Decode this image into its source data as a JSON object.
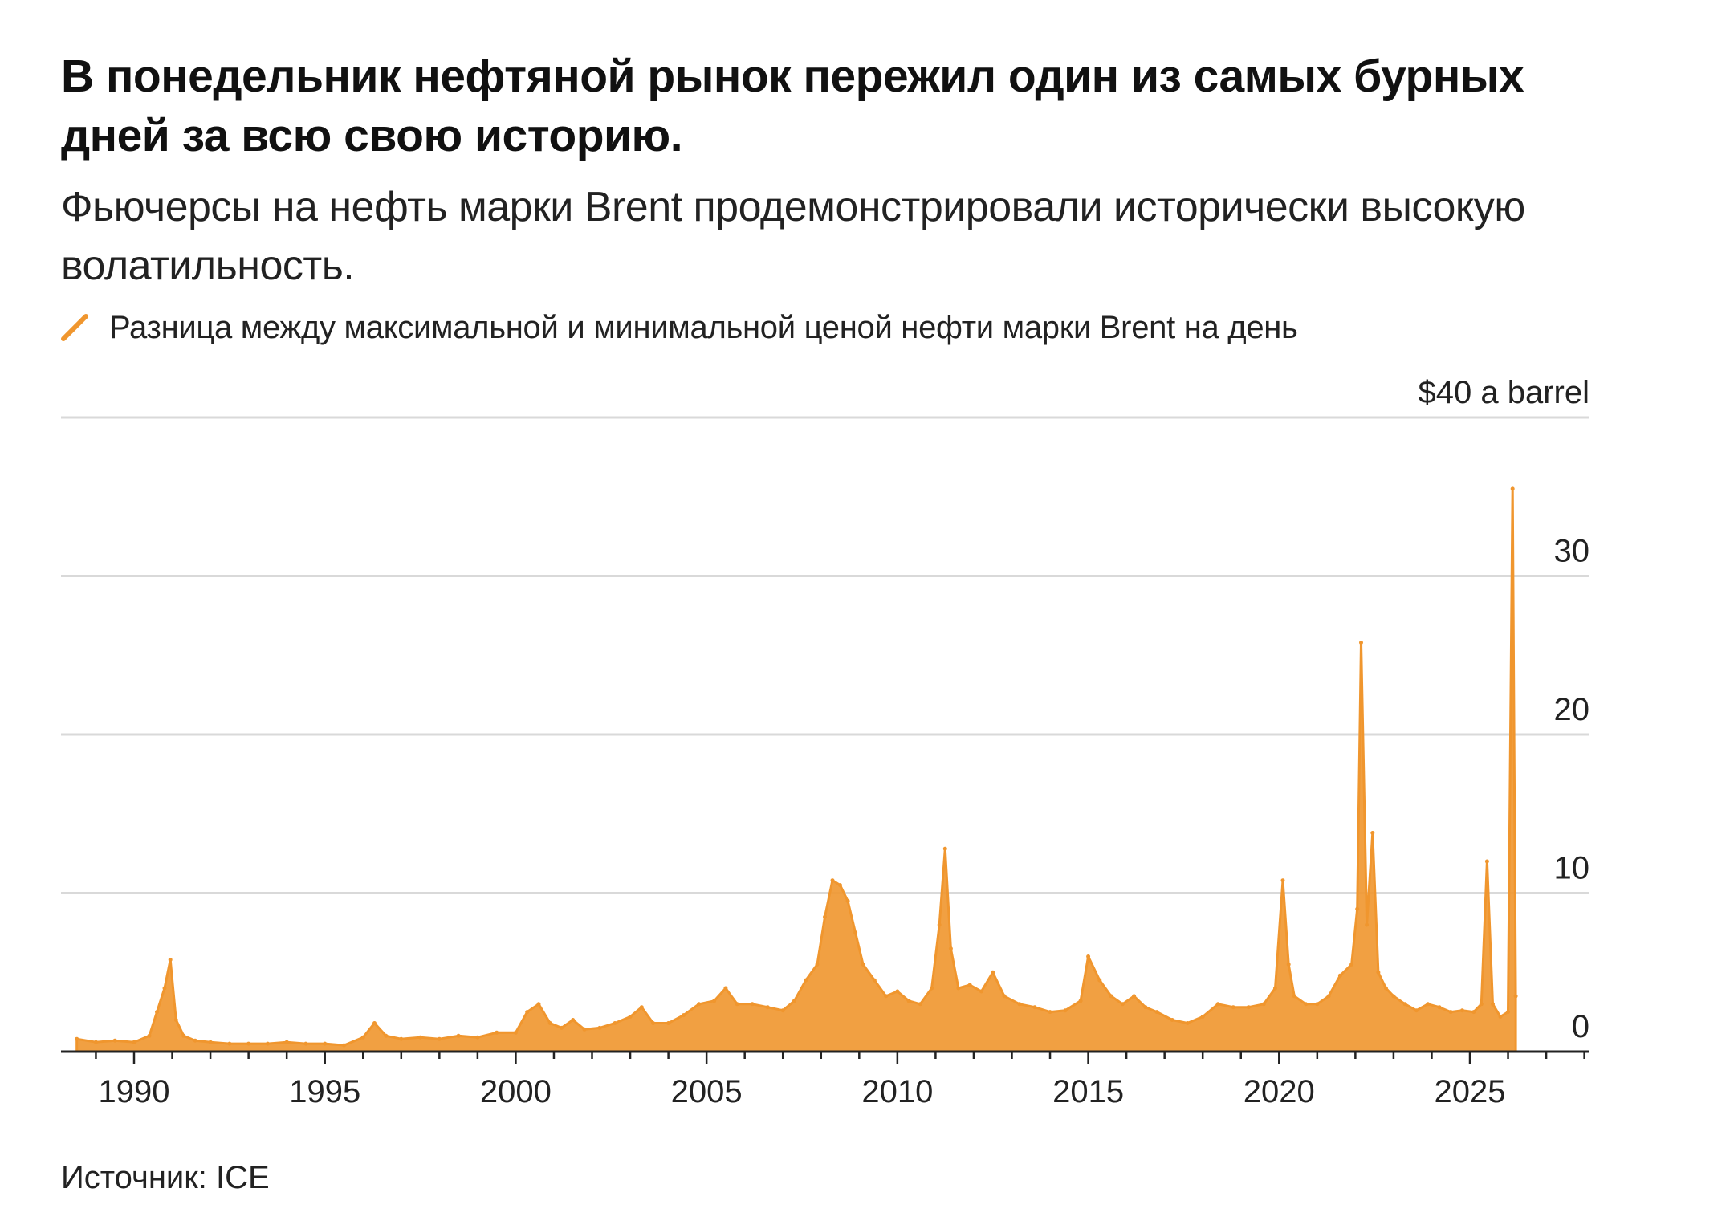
{
  "header": {
    "title": "В понедельник нефтяной рынок пережил один из самых бурных дней за всю свою историю.",
    "subtitle": "Фьючерсы на нефть марки Brent продемонстрировали исторически высокую волатильность."
  },
  "footer": {
    "source": "Источник: ICE"
  },
  "colors": {
    "series": "#f0962e",
    "grid": "#d9d9d9",
    "axis": "#222222"
  },
  "chart_data": {
    "type": "area",
    "title": "",
    "unit_label": "$40 a barrel",
    "ylim": [
      0,
      40
    ],
    "y_ticks": [
      0,
      10,
      20,
      30
    ],
    "y_tick_labels": [
      "0",
      "10",
      "20",
      "30"
    ],
    "xlim": [
      1988,
      2028
    ],
    "x_ticks": [
      1990,
      1995,
      2000,
      2005,
      2010,
      2015,
      2020,
      2025
    ],
    "x_tick_labels": [
      "1990",
      "1995",
      "2000",
      "2005",
      "2010",
      "2015",
      "2020",
      "2025"
    ],
    "grid": true,
    "legend_placement": "top-left",
    "series": [
      {
        "name": "Разница между максимальной и минимальной ценой нефти марки Brent на день",
        "x": [
          1988.5,
          1989.0,
          1989.5,
          1990.0,
          1990.4,
          1990.6,
          1990.8,
          1990.95,
          1991.1,
          1991.3,
          1991.6,
          1992.0,
          1992.5,
          1993.0,
          1993.5,
          1994.0,
          1994.5,
          1995.0,
          1995.5,
          1996.0,
          1996.3,
          1996.6,
          1997.0,
          1997.5,
          1998.0,
          1998.5,
          1999.0,
          1999.5,
          2000.0,
          2000.3,
          2000.6,
          2000.9,
          2001.2,
          2001.5,
          2001.8,
          2002.2,
          2002.6,
          2003.0,
          2003.3,
          2003.6,
          2004.0,
          2004.4,
          2004.8,
          2005.2,
          2005.5,
          2005.8,
          2006.2,
          2006.6,
          2007.0,
          2007.3,
          2007.6,
          2007.9,
          2008.1,
          2008.3,
          2008.5,
          2008.7,
          2008.9,
          2009.1,
          2009.4,
          2009.7,
          2010.0,
          2010.3,
          2010.6,
          2010.9,
          2011.1,
          2011.25,
          2011.4,
          2011.6,
          2011.9,
          2012.2,
          2012.5,
          2012.8,
          2013.2,
          2013.6,
          2014.0,
          2014.4,
          2014.8,
          2015.0,
          2015.3,
          2015.6,
          2015.9,
          2016.2,
          2016.5,
          2016.8,
          2017.2,
          2017.6,
          2018.0,
          2018.4,
          2018.8,
          2019.2,
          2019.6,
          2019.9,
          2020.1,
          2020.25,
          2020.4,
          2020.7,
          2021.0,
          2021.3,
          2021.6,
          2021.9,
          2022.05,
          2022.15,
          2022.3,
          2022.45,
          2022.6,
          2022.8,
          2023.0,
          2023.3,
          2023.6,
          2023.9,
          2024.2,
          2024.5,
          2024.8,
          2025.1,
          2025.3,
          2025.45,
          2025.6,
          2025.8,
          2026.0,
          2026.12,
          2026.2
        ],
        "values": [
          0.8,
          0.6,
          0.7,
          0.6,
          1.0,
          2.5,
          4.0,
          5.8,
          2.0,
          1.0,
          0.7,
          0.6,
          0.5,
          0.5,
          0.5,
          0.6,
          0.5,
          0.5,
          0.4,
          0.9,
          1.8,
          1.0,
          0.8,
          0.9,
          0.8,
          1.0,
          0.9,
          1.2,
          1.2,
          2.5,
          3.0,
          1.8,
          1.5,
          2.0,
          1.4,
          1.5,
          1.8,
          2.2,
          2.8,
          1.8,
          1.8,
          2.3,
          3.0,
          3.2,
          4.0,
          3.0,
          3.0,
          2.8,
          2.6,
          3.2,
          4.5,
          5.5,
          8.5,
          10.8,
          10.5,
          9.5,
          7.5,
          5.5,
          4.5,
          3.5,
          3.8,
          3.2,
          3.0,
          4.0,
          8.0,
          12.8,
          6.5,
          4.0,
          4.2,
          3.8,
          5.0,
          3.5,
          3.0,
          2.8,
          2.5,
          2.6,
          3.2,
          6.0,
          4.5,
          3.5,
          3.0,
          3.5,
          2.8,
          2.5,
          2.0,
          1.8,
          2.2,
          3.0,
          2.8,
          2.8,
          3.0,
          4.0,
          10.8,
          5.5,
          3.5,
          3.0,
          3.0,
          3.5,
          4.8,
          5.5,
          9.0,
          25.8,
          8.0,
          13.8,
          5.0,
          4.0,
          3.5,
          3.0,
          2.6,
          3.0,
          2.8,
          2.5,
          2.6,
          2.5,
          3.0,
          12.0,
          3.0,
          2.2,
          2.5,
          35.5,
          3.5
        ]
      }
    ]
  }
}
